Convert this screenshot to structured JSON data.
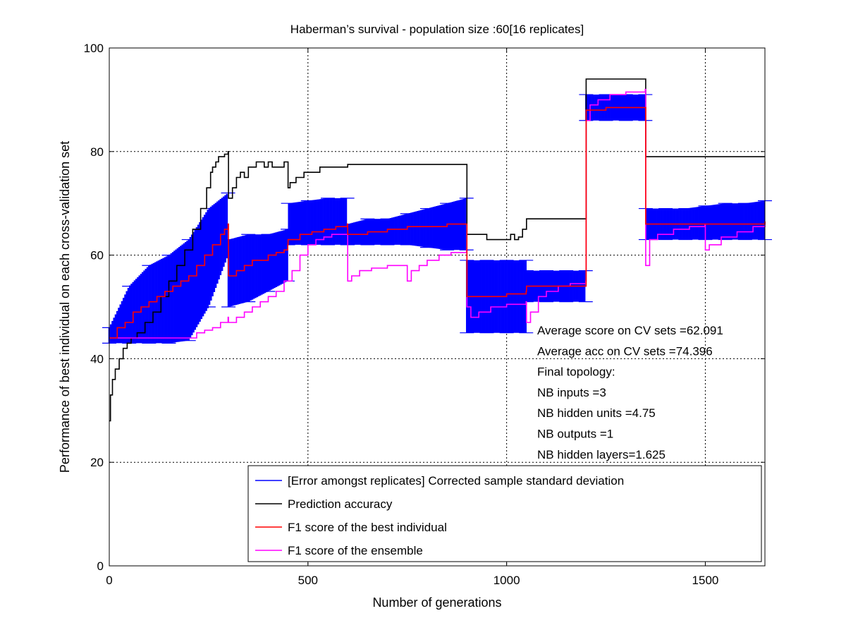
{
  "chart_data": {
    "type": "line",
    "title": "Haberman’s survival - population size :60[16 replicates]",
    "xlabel": "Number of generations",
    "ylabel": "Performance of best individual on each cross-validation set",
    "xlim": [
      0,
      1650
    ],
    "ylim": [
      0,
      100
    ],
    "xticks": [
      0,
      500,
      1000,
      1500
    ],
    "yticks": [
      0,
      20,
      40,
      60,
      80,
      100
    ],
    "grid": true,
    "legend_position": "lower-right",
    "legend": [
      "[Error amongst replicates] Corrected sample standard deviation",
      "Prediction accuracy",
      "F1 score of the best individual",
      "F1 score of the ensemble"
    ],
    "annotations": [
      "Average score on CV sets =62.091",
      "Average acc on CV sets =74.396",
      "Final topology:",
      "NB inputs           =3",
      "NB hidden units  =4.75",
      "NB outputs          =1",
      "NB hidden layers=1.625"
    ],
    "series": [
      {
        "name": "Prediction accuracy",
        "color": "#000000",
        "x": [
          0,
          3,
          8,
          15,
          25,
          35,
          45,
          55,
          70,
          90,
          110,
          130,
          150,
          170,
          190,
          210,
          230,
          245,
          255,
          260,
          268,
          275,
          285,
          290,
          299,
          300,
          310,
          320,
          330,
          340,
          350,
          360,
          370,
          380,
          390,
          400,
          410,
          420,
          440,
          449,
          450,
          455,
          460,
          470,
          490,
          510,
          530,
          560,
          600,
          650,
          700,
          750,
          800,
          850,
          899,
          900,
          920,
          950,
          980,
          1000,
          1010,
          1020,
          1030,
          1040,
          1050,
          1060,
          1070,
          1080,
          1090,
          1100,
          1130,
          1160,
          1199,
          1200,
          1210,
          1230,
          1260,
          1300,
          1349,
          1350,
          1400,
          1450,
          1500,
          1550,
          1600,
          1650
        ],
        "y": [
          28,
          33,
          36,
          38,
          40,
          42,
          43,
          44,
          45,
          47,
          49,
          52,
          55,
          58,
          61,
          65,
          69,
          73,
          76,
          77,
          78,
          79,
          79,
          79.5,
          80,
          71,
          73,
          75,
          76,
          75,
          77,
          77,
          78,
          78,
          77,
          78,
          77,
          77,
          78,
          78,
          73,
          74,
          74,
          75,
          76,
          76,
          77,
          77,
          77.5,
          77.5,
          77.5,
          77.5,
          77.5,
          77.5,
          77.5,
          64,
          64,
          63,
          63,
          63,
          64,
          63,
          63.5,
          65,
          67,
          67,
          67,
          67,
          67,
          67,
          67,
          67,
          67,
          94,
          94,
          94,
          94,
          94,
          94,
          79,
          79,
          79,
          79,
          79,
          79,
          79
        ]
      },
      {
        "name": "F1 score of the best individual",
        "color": "#ff0000",
        "x": [
          0,
          20,
          40,
          60,
          80,
          100,
          120,
          140,
          160,
          180,
          200,
          220,
          240,
          260,
          280,
          290,
          299,
          300,
          320,
          340,
          360,
          380,
          400,
          420,
          440,
          449,
          450,
          480,
          510,
          540,
          570,
          599,
          600,
          650,
          700,
          750,
          800,
          850,
          899,
          900,
          950,
          1000,
          1049,
          1050,
          1100,
          1150,
          1199,
          1200,
          1250,
          1300,
          1349,
          1350,
          1400,
          1450,
          1500,
          1550,
          1600,
          1650
        ],
        "y": [
          44,
          46,
          47,
          49,
          50,
          51,
          52,
          53,
          54,
          55,
          56,
          58,
          60,
          62,
          64,
          65,
          66,
          56,
          57,
          58,
          59,
          59,
          60,
          60.5,
          61,
          62,
          63,
          64,
          64.5,
          65,
          65.5,
          66,
          64,
          64.5,
          65,
          65.5,
          65.5,
          66,
          66,
          52,
          52,
          52.5,
          53,
          54,
          54,
          54,
          54,
          88,
          88.5,
          88.5,
          88.5,
          66,
          66,
          66,
          66,
          66,
          66,
          66.5
        ]
      },
      {
        "name": "F1 score of the ensemble",
        "color": "#ff00ff",
        "x": [
          0,
          50,
          100,
          150,
          200,
          220,
          240,
          260,
          280,
          299,
          300,
          320,
          340,
          360,
          380,
          400,
          420,
          440,
          460,
          480,
          500,
          520,
          540,
          560,
          580,
          599,
          600,
          610,
          630,
          660,
          700,
          749,
          750,
          760,
          780,
          800,
          830,
          860,
          899,
          900,
          910,
          930,
          960,
          1000,
          1049,
          1050,
          1060,
          1080,
          1100,
          1130,
          1160,
          1199,
          1200,
          1210,
          1230,
          1260,
          1300,
          1349,
          1350,
          1360,
          1380,
          1420,
          1460,
          1499,
          1500,
          1510,
          1540,
          1580,
          1620,
          1650
        ],
        "y": [
          44,
          44,
          44,
          44,
          44,
          45,
          45.5,
          46,
          47,
          48,
          47,
          48,
          49,
          50,
          51,
          52,
          53,
          55,
          57,
          60,
          62,
          63,
          63.5,
          64,
          64,
          64,
          55,
          56,
          57,
          57.5,
          58,
          58,
          55,
          57,
          58,
          59,
          60,
          60.5,
          61,
          50,
          48,
          49,
          50,
          50.5,
          51,
          47,
          49,
          52,
          53,
          54,
          54.5,
          55,
          86,
          89,
          90,
          91,
          91.5,
          92,
          58,
          63,
          64,
          65,
          65.5,
          66,
          61,
          62,
          63.5,
          64.5,
          65.5,
          66.5
        ]
      },
      {
        "name": "[Error amongst replicates] Corrected sample standard deviation",
        "color": "#0000ff",
        "x": [
          0,
          50,
          100,
          150,
          200,
          250,
          299,
          300,
          350,
          400,
          449,
          450,
          500,
          550,
          599,
          600,
          650,
          700,
          750,
          800,
          850,
          899,
          900,
          950,
          1000,
          1049,
          1050,
          1100,
          1150,
          1199,
          1200,
          1250,
          1300,
          1349,
          1350,
          1400,
          1450,
          1500,
          1550,
          1600,
          1650
        ],
        "lower": [
          43,
          43,
          43,
          43,
          43.5,
          50,
          60,
          50,
          51,
          53,
          55,
          62,
          62,
          62,
          62,
          62,
          62,
          62,
          62,
          61.5,
          61,
          61,
          45,
          45,
          45,
          45,
          51,
          51,
          51,
          51,
          86,
          86,
          86,
          86,
          63,
          63,
          63,
          63,
          63,
          63,
          63
        ],
        "upper": [
          46,
          54,
          58,
          60,
          63,
          69,
          72,
          63,
          64,
          64,
          65,
          70,
          70.5,
          71,
          71,
          66,
          67,
          67,
          68,
          69,
          70,
          71,
          59,
          59,
          59,
          59,
          57,
          57,
          57,
          57,
          91,
          91,
          91,
          91,
          69,
          69,
          69,
          69.5,
          70,
          70,
          70.5
        ]
      }
    ]
  }
}
